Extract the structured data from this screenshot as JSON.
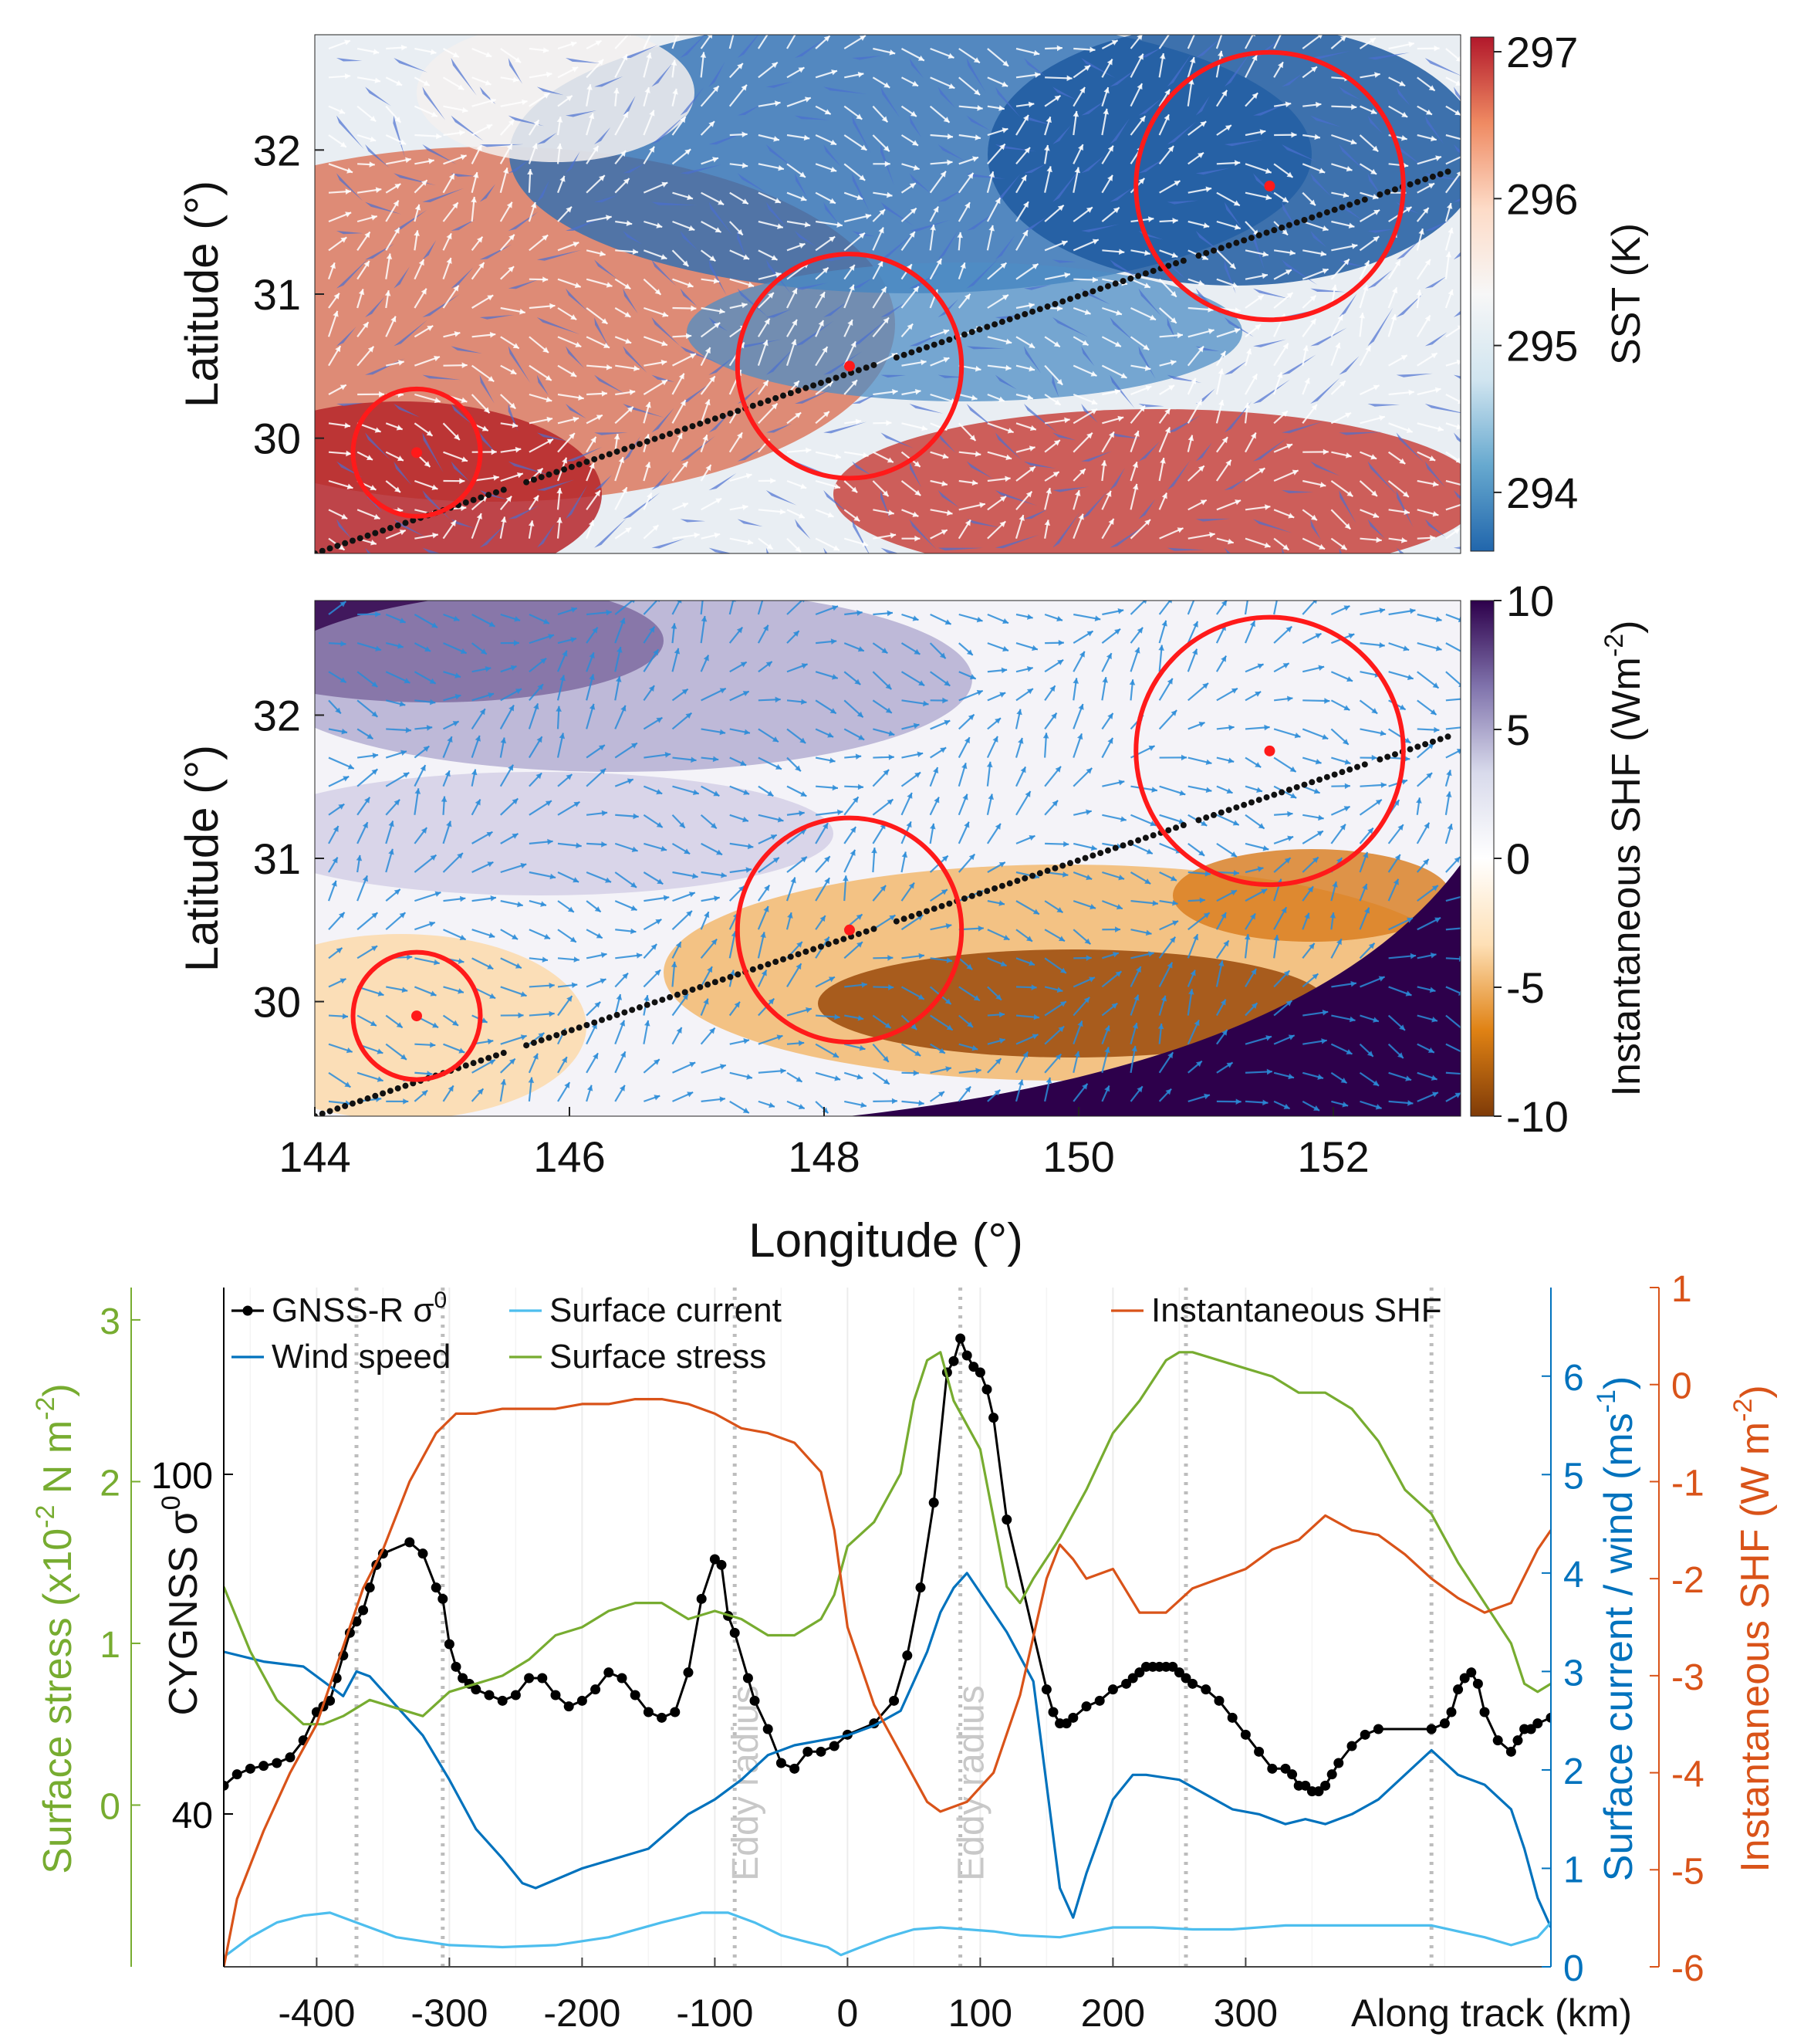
{
  "chart_data": [
    {
      "panel": "top",
      "type": "heatmap",
      "ylabel": "Latitude (°)",
      "colorbar_label": "SST (K)",
      "colorbar_ticks": [
        "297",
        "296",
        "295",
        "294"
      ],
      "colorbar_range": [
        293.6,
        297.1
      ],
      "colormap": [
        "#b2182b",
        "#ef8a62",
        "#fddbc7",
        "#f7f7f7",
        "#d1e5f0",
        "#67a9cf",
        "#2166ac"
      ],
      "xlim": [
        144,
        153
      ],
      "ylim": [
        29.2,
        32.8
      ],
      "ytick_labels": [
        "32",
        "31",
        "30"
      ],
      "yticks": [
        32,
        31,
        30
      ],
      "eddy_centers": [
        [
          144.8,
          29.9
        ],
        [
          148.2,
          30.5
        ],
        [
          151.5,
          31.75
        ]
      ],
      "eddy_radii_deg": [
        0.5,
        0.88,
        1.05
      ],
      "track": [
        [
          144.0,
          29.2
        ],
        [
          152.9,
          31.85
        ]
      ],
      "arrow_color": "#ffffff",
      "wedge_color": "#4a6fd0"
    },
    {
      "panel": "middle",
      "type": "heatmap",
      "ylabel": "Latitude (°)",
      "xlabel": "Longitude (°)",
      "colorbar_label_main": "Instantaneous SHF (Wm",
      "colorbar_label_sup": "-2",
      "colorbar_label_end": ")",
      "colorbar_ticks": [
        "10",
        "5",
        "0",
        "-5",
        "-10"
      ],
      "colorbar_range": [
        -10,
        10
      ],
      "colormap": [
        "#2d004b",
        "#8073ac",
        "#d8daeb",
        "#ffffff",
        "#fee0b6",
        "#e08214",
        "#7f3b08"
      ],
      "xlim": [
        144,
        153
      ],
      "ylim": [
        29.2,
        32.8
      ],
      "xtick_labels": [
        "144",
        "146",
        "148",
        "150",
        "152"
      ],
      "xticks": [
        144,
        146,
        148,
        150,
        152
      ],
      "ytick_labels": [
        "32",
        "31",
        "30"
      ],
      "yticks": [
        32,
        31,
        30
      ],
      "eddy_centers": [
        [
          144.8,
          29.9
        ],
        [
          148.2,
          30.5
        ],
        [
          151.5,
          31.75
        ]
      ],
      "eddy_radii_deg": [
        0.5,
        0.88,
        1.05
      ],
      "track": [
        [
          144.0,
          29.2
        ],
        [
          152.9,
          31.85
        ]
      ],
      "arrow_color": "#2b8cd8"
    },
    {
      "panel": "bottom",
      "type": "line",
      "xlabel": "Along track (km)",
      "xlim": [
        -470,
        530
      ],
      "xticks": [
        -400,
        -300,
        -200,
        -100,
        0,
        100,
        200,
        300
      ],
      "xtick_labels": [
        "-400",
        "-300",
        "-200",
        "-100",
        "0",
        "100",
        "200",
        "300"
      ],
      "eddy_radius_label": "Eddy radius",
      "eddy_radius_at": [
        -85,
        85
      ],
      "dotted_lines": [
        -370,
        -305,
        -85,
        85,
        255,
        440
      ],
      "axes": {
        "left_outer": {
          "label_main": "Surface stress (x10",
          "label_sup": "-2",
          "label_end": " N m",
          "label_sup2": "-2",
          "label_end2": ")",
          "color": "#77ac30",
          "ylim": [
            -1.0,
            3.2
          ],
          "ticks": [
            0,
            1,
            2,
            3
          ],
          "tick_labels": [
            "0",
            "1",
            "2",
            "3"
          ]
        },
        "left_inner": {
          "label_main": "CYGNSS σ",
          "label_sup": "0",
          "color": "#000000",
          "ylim": [
            13,
            133
          ],
          "ticks": [
            40,
            100
          ],
          "tick_labels": [
            "40",
            "100"
          ]
        },
        "right_inner": {
          "label_main": "Surface current / wind (ms",
          "label_sup": "-1",
          "label_end": ")",
          "color": "#0072bd",
          "ylim": [
            0,
            6.9
          ],
          "ticks": [
            0,
            1,
            2,
            3,
            4,
            5,
            6
          ],
          "tick_labels": [
            "0",
            "1",
            "2",
            "3",
            "4",
            "5",
            "6"
          ]
        },
        "right_outer": {
          "label_main": "Instantaneous SHF (W m",
          "label_sup": "-2",
          "label_end": ")",
          "color": "#d95319",
          "ylim": [
            -6,
            1
          ],
          "ticks": [
            1,
            0,
            -1,
            -2,
            -3,
            -4,
            -5,
            -6
          ],
          "tick_labels": [
            "1",
            "0",
            "-1",
            "-2",
            "-3",
            "-4",
            "-5",
            "-6"
          ]
        }
      },
      "series": [
        {
          "name": "GNSS-R σ",
          "name_sup": "0",
          "axis": "left_inner",
          "color": "#000000",
          "markers": true,
          "x": [
            -470,
            -460,
            -450,
            -440,
            -430,
            -420,
            -410,
            -400,
            -395,
            -390,
            -385,
            -380,
            -375,
            -370,
            -365,
            -360,
            -355,
            -350,
            -330,
            -320,
            -310,
            -305,
            -300,
            -295,
            -290,
            -285,
            -280,
            -270,
            -260,
            -250,
            -240,
            -230,
            -220,
            -210,
            -200,
            -190,
            -180,
            -170,
            -160,
            -150,
            -140,
            -130,
            -120,
            -110,
            -100,
            -95,
            -90,
            -85,
            -75,
            -70,
            -60,
            -50,
            -40,
            -30,
            -20,
            -10,
            0,
            20,
            35,
            45,
            55,
            65,
            75,
            80,
            85,
            90,
            95,
            100,
            105,
            110,
            120,
            150,
            155,
            160,
            165,
            170,
            180,
            190,
            200,
            210,
            215,
            220,
            225,
            230,
            235,
            240,
            245,
            250,
            255,
            260,
            270,
            280,
            290,
            300,
            310,
            320,
            330,
            335,
            340,
            345,
            350,
            355,
            360,
            365,
            370,
            380,
            390,
            400,
            440,
            450,
            455,
            460,
            465,
            470,
            475,
            480,
            490,
            500,
            505,
            510,
            515,
            520,
            530
          ],
          "y": [
            45,
            47,
            48,
            48.5,
            49,
            50,
            53,
            58,
            59,
            60,
            64,
            68,
            72,
            74,
            76,
            80,
            84,
            86,
            88,
            86,
            80,
            78,
            70,
            66,
            64,
            63,
            62,
            61,
            60,
            61,
            64,
            64,
            61,
            59,
            60,
            62,
            65,
            64,
            61,
            58,
            57,
            58,
            65,
            78,
            85,
            84,
            75,
            72,
            64,
            60,
            55,
            49,
            48,
            51,
            51,
            52,
            54,
            56,
            60,
            68,
            80,
            95,
            118,
            120,
            124,
            121,
            119,
            118,
            115,
            110,
            92,
            62,
            58,
            56,
            56,
            57,
            59,
            60,
            62,
            63,
            64,
            65,
            66,
            66,
            66,
            66,
            66,
            65,
            64,
            63,
            62,
            60,
            57,
            54,
            51,
            48,
            48,
            47,
            45,
            45,
            44,
            44,
            45,
            47,
            49,
            52,
            54,
            55,
            55,
            56,
            58,
            62,
            64,
            65,
            63,
            58,
            53,
            51,
            53,
            55,
            55,
            56,
            57
          ]
        },
        {
          "name": "Wind speed",
          "axis": "right_inner",
          "color": "#0072bd",
          "markers": false,
          "x": [
            -470,
            -440,
            -410,
            -395,
            -380,
            -370,
            -360,
            -350,
            -320,
            -300,
            -280,
            -260,
            -245,
            -235,
            -200,
            -150,
            -120,
            -100,
            -80,
            -60,
            -40,
            -20,
            0,
            20,
            40,
            60,
            70,
            80,
            90,
            100,
            120,
            140,
            160,
            170,
            180,
            200,
            215,
            225,
            250,
            270,
            290,
            310,
            330,
            345,
            360,
            380,
            400,
            420,
            440,
            460,
            480,
            500,
            510,
            520,
            530
          ],
          "y": [
            3.2,
            3.1,
            3.05,
            2.9,
            2.75,
            3.0,
            2.95,
            2.8,
            2.35,
            1.9,
            1.4,
            1.1,
            0.85,
            0.8,
            1.0,
            1.2,
            1.55,
            1.7,
            1.9,
            2.15,
            2.25,
            2.3,
            2.35,
            2.45,
            2.6,
            3.2,
            3.6,
            3.85,
            4.0,
            3.8,
            3.4,
            2.9,
            0.8,
            0.5,
            0.95,
            1.7,
            1.95,
            1.95,
            1.9,
            1.75,
            1.6,
            1.55,
            1.45,
            1.5,
            1.45,
            1.55,
            1.7,
            1.95,
            2.2,
            1.95,
            1.85,
            1.6,
            1.2,
            0.7,
            0.4
          ]
        },
        {
          "name": "Surface current",
          "axis": "right_inner",
          "color": "#4dbeee",
          "markers": false,
          "x": [
            -470,
            -450,
            -430,
            -410,
            -390,
            -370,
            -340,
            -300,
            -260,
            -220,
            -180,
            -140,
            -110,
            -90,
            -70,
            -50,
            -30,
            -15,
            -5,
            10,
            30,
            50,
            70,
            90,
            110,
            130,
            160,
            180,
            200,
            230,
            260,
            290,
            330,
            360,
            400,
            440,
            480,
            500,
            520,
            530
          ],
          "y": [
            0.1,
            0.3,
            0.45,
            0.52,
            0.55,
            0.45,
            0.3,
            0.22,
            0.2,
            0.22,
            0.3,
            0.45,
            0.55,
            0.55,
            0.45,
            0.32,
            0.25,
            0.2,
            0.12,
            0.2,
            0.3,
            0.38,
            0.4,
            0.38,
            0.36,
            0.32,
            0.3,
            0.35,
            0.4,
            0.4,
            0.38,
            0.38,
            0.42,
            0.42,
            0.42,
            0.42,
            0.3,
            0.22,
            0.3,
            0.45
          ]
        },
        {
          "name": "Surface stress",
          "axis": "left_outer",
          "color": "#77ac30",
          "markers": false,
          "x": [
            -470,
            -450,
            -430,
            -410,
            -395,
            -380,
            -360,
            -340,
            -320,
            -300,
            -280,
            -260,
            -240,
            -220,
            -200,
            -180,
            -160,
            -140,
            -120,
            -100,
            -80,
            -60,
            -40,
            -20,
            -10,
            0,
            20,
            40,
            50,
            60,
            70,
            80,
            100,
            120,
            130,
            140,
            160,
            180,
            200,
            220,
            240,
            250,
            260,
            280,
            300,
            320,
            340,
            360,
            380,
            400,
            420,
            440,
            460,
            480,
            500,
            510,
            520,
            530
          ],
          "y": [
            1.35,
            0.95,
            0.65,
            0.5,
            0.5,
            0.55,
            0.65,
            0.6,
            0.55,
            0.7,
            0.75,
            0.8,
            0.9,
            1.05,
            1.1,
            1.2,
            1.25,
            1.25,
            1.15,
            1.2,
            1.15,
            1.05,
            1.05,
            1.15,
            1.3,
            1.6,
            1.75,
            2.05,
            2.5,
            2.75,
            2.8,
            2.5,
            2.2,
            1.35,
            1.25,
            1.4,
            1.65,
            1.95,
            2.3,
            2.5,
            2.75,
            2.8,
            2.8,
            2.75,
            2.7,
            2.65,
            2.55,
            2.55,
            2.45,
            2.25,
            1.95,
            1.8,
            1.5,
            1.25,
            1.0,
            0.75,
            0.7,
            0.75
          ]
        },
        {
          "name": "Instantaneous SHF",
          "axis": "right_outer",
          "color": "#d95319",
          "markers": false,
          "x": [
            -470,
            -460,
            -440,
            -420,
            -400,
            -390,
            -375,
            -365,
            -350,
            -330,
            -310,
            -295,
            -280,
            -260,
            -240,
            -220,
            -200,
            -180,
            -160,
            -140,
            -120,
            -100,
            -80,
            -60,
            -40,
            -20,
            -10,
            0,
            20,
            40,
            60,
            70,
            90,
            110,
            130,
            150,
            160,
            170,
            180,
            200,
            220,
            240,
            260,
            280,
            300,
            320,
            340,
            360,
            380,
            400,
            420,
            440,
            460,
            480,
            500,
            520,
            530
          ],
          "y": [
            -6,
            -5.3,
            -4.6,
            -4.0,
            -3.5,
            -3.1,
            -2.5,
            -2.1,
            -1.7,
            -1.0,
            -0.5,
            -0.3,
            -0.3,
            -0.25,
            -0.25,
            -0.25,
            -0.2,
            -0.2,
            -0.15,
            -0.15,
            -0.2,
            -0.3,
            -0.45,
            -0.5,
            -0.6,
            -0.9,
            -1.5,
            -2.5,
            -3.3,
            -3.8,
            -4.3,
            -4.4,
            -4.3,
            -4.0,
            -3.2,
            -2.0,
            -1.65,
            -1.8,
            -2.0,
            -1.9,
            -2.35,
            -2.35,
            -2.1,
            -2.0,
            -1.9,
            -1.7,
            -1.6,
            -1.35,
            -1.5,
            -1.55,
            -1.75,
            -2.0,
            -2.2,
            -2.35,
            -2.25,
            -1.7,
            -1.5
          ]
        }
      ],
      "legend": [
        {
          "label": "GNSS-R σ",
          "sup": "0",
          "color": "#000000",
          "marker": true
        },
        {
          "label": "Wind speed",
          "color": "#0072bd",
          "marker": false
        },
        {
          "label": "Surface current",
          "color": "#4dbeee",
          "marker": false
        },
        {
          "label": "Surface stress",
          "color": "#77ac30",
          "marker": false
        },
        {
          "label": "Instantaneous SHF",
          "color": "#d95319",
          "marker": false
        }
      ]
    }
  ]
}
